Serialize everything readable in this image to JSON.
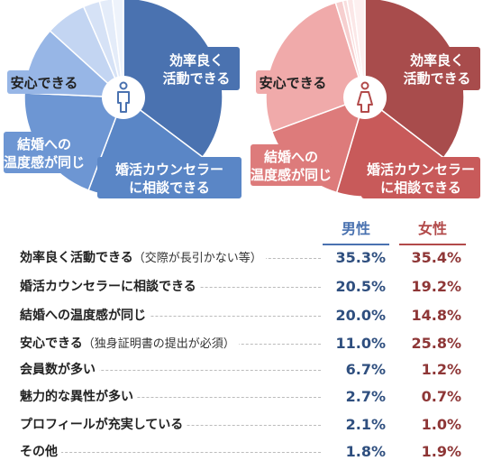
{
  "chart_data": [
    {
      "type": "pie",
      "series_name": "男性",
      "categories": [
        "効率良く活動できる",
        "婚活カウンセラーに相談できる",
        "結婚への温度感が同じ",
        "安心できる",
        "会員数が多い",
        "魅力的な異性が多い",
        "プロフィールが充実している",
        "その他"
      ],
      "values": [
        35.3,
        20.5,
        20.0,
        11.0,
        6.7,
        2.7,
        2.1,
        1.8
      ],
      "colors": [
        "#4a72b0",
        "#5a86c6",
        "#6d96d3",
        "#97b6e6",
        "#c3d5f2",
        "#d6e2f6",
        "#e4ecf9",
        "#eef3fb"
      ],
      "slice_labels": [
        "効率良く\n活動できる",
        "婚活カウンセラー\nに相談できる",
        "結婚への\n温度感が同じ",
        "安心できる",
        "",
        "",
        "",
        ""
      ]
    },
    {
      "type": "pie",
      "series_name": "女性",
      "categories": [
        "効率良く活動できる",
        "婚活カウンセラーに相談できる",
        "結婚への温度感が同じ",
        "安心できる",
        "会員数が多い",
        "魅力的な異性が多い",
        "プロフィールが充実している",
        "その他"
      ],
      "values": [
        35.4,
        19.2,
        14.8,
        25.8,
        1.2,
        0.7,
        1.0,
        1.9
      ],
      "colors": [
        "#a84c4c",
        "#c85a5a",
        "#dd7b7b",
        "#f0aaaa",
        "#f6cfcf",
        "#f9dddd",
        "#fbe7e7",
        "#fdf0f0"
      ],
      "slice_labels": [
        "効率良く\n活動できる",
        "婚活カウンセラー\nに相談できる",
        "結婚への\n温度感が同じ",
        "安心できる",
        "",
        "",
        "",
        ""
      ]
    }
  ],
  "table": {
    "header_male": "男性",
    "header_female": "女性",
    "rows": [
      {
        "label": "効率良く活動できる",
        "note": "（交際が長引かない等）",
        "male": "35.3%",
        "female": "35.4%"
      },
      {
        "label": "婚活カウンセラーに相談できる",
        "note": "",
        "male": "20.5%",
        "female": "19.2%"
      },
      {
        "label": "結婚への温度感が同じ",
        "note": "",
        "male": "20.0%",
        "female": "14.8%"
      },
      {
        "label": "安心できる",
        "note": "（独身証明書の提出が必須）",
        "male": "11.0%",
        "female": "25.8%"
      },
      {
        "label": "会員数が多い",
        "note": "",
        "male": "6.7%",
        "female": "1.2%"
      },
      {
        "label": "魅力的な異性が多い",
        "note": "",
        "male": "2.7%",
        "female": "0.7%"
      },
      {
        "label": "プロフィールが充実している",
        "note": "",
        "male": "2.1%",
        "female": "1.0%"
      },
      {
        "label": "その他",
        "note": "",
        "male": "1.8%",
        "female": "1.9%"
      }
    ]
  },
  "icons": {
    "male": "male-person-icon",
    "female": "female-person-icon",
    "male_color": "#4a72b0",
    "female_color": "#b24a4a"
  }
}
